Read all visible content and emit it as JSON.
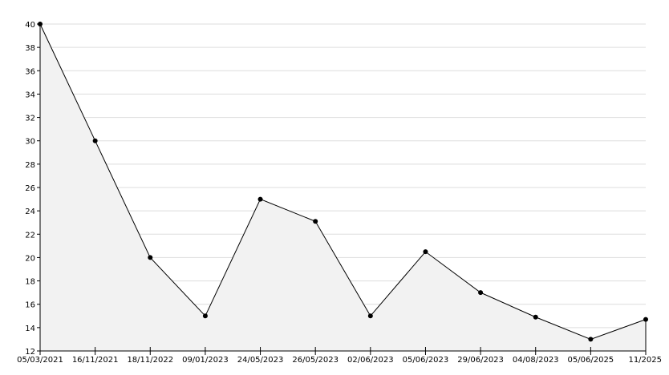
{
  "chart_data": {
    "type": "area",
    "title": "",
    "xlabel": "",
    "ylabel": "",
    "categories": [
      "05/03/2021",
      "16/11/2021",
      "18/11/2022",
      "09/01/2023",
      "24/05/2023",
      "26/05/2023",
      "02/06/2023",
      "05/06/2023",
      "29/06/2023",
      "04/08/2023",
      "05/06/2025",
      "11/2025"
    ],
    "values": [
      40,
      30,
      20,
      15,
      25,
      23.1,
      15,
      20.5,
      17,
      14.9,
      13,
      14.7
    ],
    "ylim": [
      12,
      40
    ],
    "yticks": [
      12,
      14,
      16,
      18,
      20,
      22,
      24,
      26,
      28,
      30,
      32,
      34,
      36,
      38,
      40
    ],
    "grid": "horizontal",
    "colors": {
      "line": "#000000",
      "fill": "#f2f2f2",
      "grid": "#dddddd"
    }
  }
}
